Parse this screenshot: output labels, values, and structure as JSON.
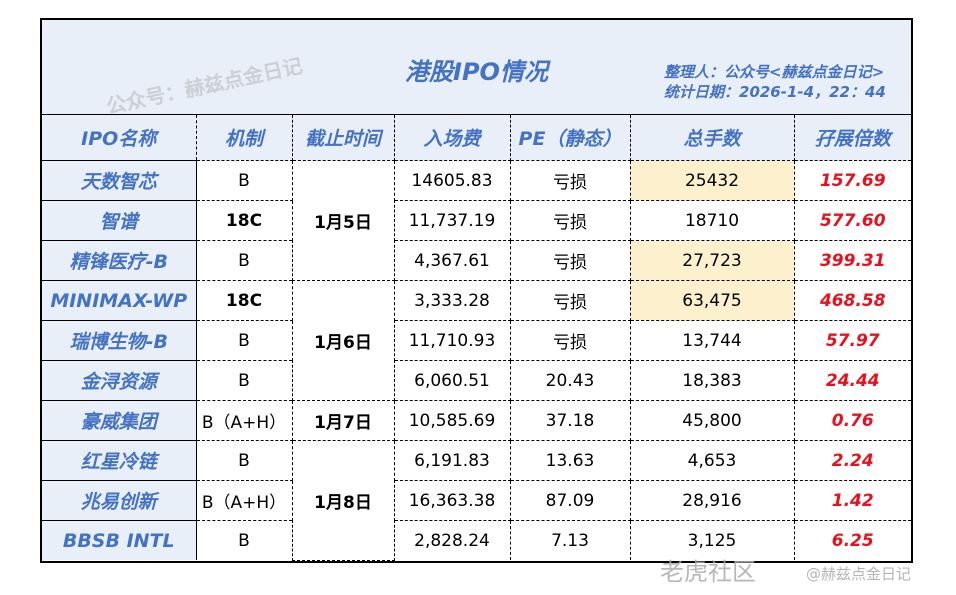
{
  "title": "港股IPO情况",
  "organizer": "整理人：公众号<赫兹点金日记>",
  "stat_date": "统计日期：2026-1-4，22：44",
  "headers": [
    "IPO名称",
    "机制",
    "截止时间",
    "入场费",
    "PE（静态）",
    "总手数",
    "孖展倍数"
  ],
  "rows": [
    {
      "name": "天数智芯",
      "mechanism": "B",
      "deadline": "1月5日",
      "fee": "14605.83",
      "pe": "亏损",
      "lots": "25432",
      "ratio": "157.69",
      "highlight": true
    },
    {
      "name": "智谱",
      "mechanism": "18C",
      "fee": "11,737.19",
      "pe": "亏损",
      "lots": "18710",
      "ratio": "577.60",
      "highlight": false
    },
    {
      "name": "精锋医疗-B",
      "mechanism": "B",
      "fee": "4,367.61",
      "pe": "亏损",
      "lots": "27,723",
      "ratio": "399.31",
      "highlight": true
    },
    {
      "name": "MINIMAX-WP",
      "mechanism": "18C",
      "deadline": "1月6日",
      "fee": "3,333.28",
      "pe": "亏损",
      "lots": "63,475",
      "ratio": "468.58",
      "highlight": true
    },
    {
      "name": "瑞博生物-B",
      "mechanism": "B",
      "fee": "11,710.93",
      "pe": "亏损",
      "lots": "13,744",
      "ratio": "57.97",
      "highlight": false
    },
    {
      "name": "金浔资源",
      "mechanism": "B",
      "fee": "6,060.51",
      "pe": "20.43",
      "lots": "18,383",
      "ratio": "24.44",
      "highlight": false
    },
    {
      "name": "豪威集团",
      "mechanism": "B（A+H）",
      "deadline": "1月7日",
      "fee": "10,585.69",
      "pe": "37.18",
      "lots": "45,800",
      "ratio": "0.76",
      "highlight": false
    },
    {
      "name": "红星冷链",
      "mechanism": "B",
      "deadline": "1月8日",
      "fee": "6,191.83",
      "pe": "13.63",
      "lots": "4,653",
      "ratio": "2.24",
      "highlight": false
    },
    {
      "name": "兆易创新",
      "mechanism": "B（A+H）",
      "fee": "16,363.38",
      "pe": "87.09",
      "lots": "28,916",
      "ratio": "1.42",
      "highlight": false
    },
    {
      "name": "BBSB INTL",
      "mechanism": "B",
      "fee": "2,828.24",
      "pe": "7.13",
      "lots": "3,125",
      "ratio": "6.25",
      "highlight": false
    }
  ],
  "deadline_spans": [
    3,
    0,
    0,
    3,
    0,
    0,
    1,
    3,
    0,
    0
  ],
  "watermarks": {
    "diagonal": "公众号：赫兹点金日记",
    "brand": "老虎社区",
    "handle": "@赫兹点金日记"
  },
  "colors": {
    "accent": "#4472c4",
    "header_bg": "#e9eff9",
    "highlight": "#fdf0cc",
    "ratio": "#e8101c"
  }
}
